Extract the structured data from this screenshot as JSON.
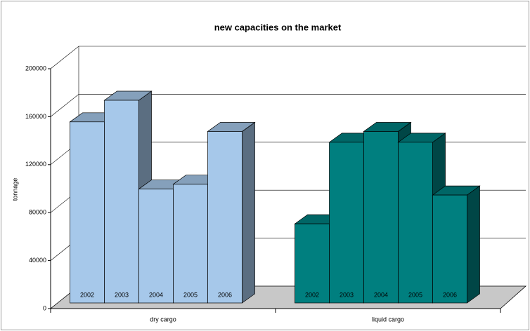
{
  "chart_data": {
    "type": "bar3d",
    "title": "new capacities on the market",
    "y_label": "tonnage",
    "categories": [
      "dry cargo",
      "liquid cargo"
    ],
    "category_colors": [
      "#a6c8ea",
      "#007f7f"
    ],
    "series": [
      {
        "name": "2002",
        "values": [
          151000,
          66000
        ]
      },
      {
        "name": "2003",
        "values": [
          169000,
          134000
        ]
      },
      {
        "name": "2004",
        "values": [
          95000,
          143000
        ]
      },
      {
        "name": "2005",
        "values": [
          99000,
          134000
        ]
      },
      {
        "name": "2006",
        "values": [
          143000,
          90000
        ]
      }
    ],
    "ylim": [
      0,
      200000
    ],
    "yticks": [
      0,
      40000,
      80000,
      120000,
      160000,
      200000
    ],
    "grid": true
  }
}
